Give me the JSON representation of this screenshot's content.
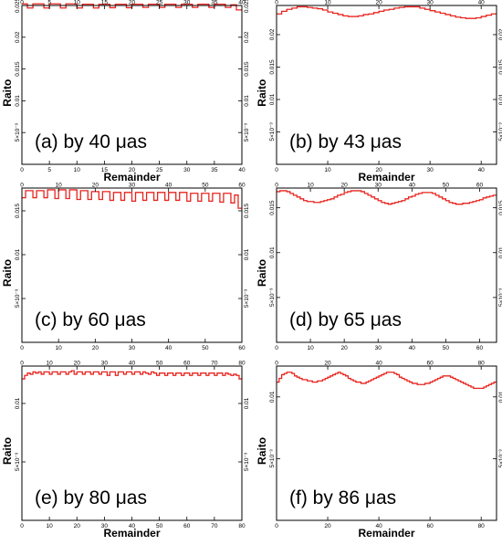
{
  "figure": {
    "background": "#ffffff",
    "series_color": "#e8241e"
  },
  "chart_data": [
    {
      "type": "line",
      "subtype": "step",
      "panel_label": "(a) by 40 μas",
      "xlabel": "Remainder",
      "ylabel": "Raito",
      "xlim": [
        0,
        40
      ],
      "ylim": [
        0,
        0.025
      ],
      "x_ticks": [
        0,
        5,
        10,
        15,
        20,
        25,
        30,
        35,
        40
      ],
      "x_ticklabels": [
        "0",
        "5",
        "10",
        "15",
        "20",
        "25",
        "30",
        "35",
        "40"
      ],
      "y_ticks": [
        0.005,
        0.01,
        0.015,
        0.02,
        0.025
      ],
      "y_ticklabels": [
        "5×10⁻³",
        "0.01",
        "0.015",
        "0.02",
        "0.025"
      ],
      "grid": false,
      "series": [
        {
          "values": [
            0.02525,
            0.0246,
            0.02525,
            0.02525,
            0.0246,
            0.02525,
            0.02525,
            0.0246,
            0.02525,
            0.02525,
            0.0246,
            0.0252,
            0.0252,
            0.0246,
            0.0252,
            0.0252,
            0.02465,
            0.0252,
            0.0252,
            0.02465,
            0.0252,
            0.0252,
            0.0247,
            0.0252,
            0.0252,
            0.0247,
            0.0252,
            0.0252,
            0.0247,
            0.0252,
            0.0252,
            0.0247,
            0.0252,
            0.0252,
            0.0247,
            0.0252,
            0.0252,
            0.0247,
            0.0251,
            0.0243
          ]
        }
      ]
    },
    {
      "type": "line",
      "subtype": "step",
      "panel_label": "(b) by 43 μas",
      "xlabel": "Remainder",
      "ylabel": "Raito",
      "xlim": [
        0,
        43
      ],
      "ylim": [
        0,
        0.0245
      ],
      "x_ticks": [
        0,
        10,
        20,
        30,
        40
      ],
      "x_ticklabels": [
        "0",
        "10",
        "20",
        "30",
        "40"
      ],
      "y_ticks": [
        0.005,
        0.01,
        0.015,
        0.02
      ],
      "y_ticklabels": [
        "5×10⁻³",
        "0.01",
        "0.015",
        "0.02"
      ],
      "grid": false,
      "series": [
        {
          "values": [
            0.0232,
            0.0236,
            0.0239,
            0.0241,
            0.0243,
            0.0243,
            0.0242,
            0.0241,
            0.024,
            0.0238,
            0.0235,
            0.0233,
            0.0231,
            0.0229,
            0.0228,
            0.0228,
            0.0229,
            0.0231,
            0.0232,
            0.0234,
            0.0236,
            0.0238,
            0.0239,
            0.0241,
            0.0242,
            0.0243,
            0.0243,
            0.0243,
            0.0241,
            0.0239,
            0.0237,
            0.0235,
            0.0233,
            0.0231,
            0.0229,
            0.0227,
            0.0226,
            0.0225,
            0.0225,
            0.0226,
            0.0228,
            0.023,
            0.0232
          ]
        }
      ]
    },
    {
      "type": "line",
      "subtype": "step",
      "panel_label": "(c) by 60 μas",
      "xlabel": "",
      "ylabel": "Raito",
      "xlim": [
        0,
        60
      ],
      "ylim": [
        0,
        0.0176
      ],
      "x_ticks": [
        0,
        10,
        20,
        30,
        40,
        50,
        60
      ],
      "x_ticklabels": [
        "0",
        "10",
        "20",
        "30",
        "40",
        "50",
        "60"
      ],
      "y_ticks": [
        0.005,
        0.01,
        0.015
      ],
      "y_ticklabels": [
        "5×10⁻³",
        "0.01",
        "0.015"
      ],
      "grid": false,
      "series": [
        {
          "values": [
            0.0165,
            0.0173,
            0.0173,
            0.0165,
            0.0173,
            0.0173,
            0.0165,
            0.0174,
            0.0174,
            0.0164,
            0.0174,
            0.0174,
            0.0164,
            0.0174,
            0.0174,
            0.0163,
            0.0173,
            0.0173,
            0.0163,
            0.0172,
            0.0172,
            0.0163,
            0.0172,
            0.0172,
            0.0162,
            0.0171,
            0.0171,
            0.0162,
            0.0171,
            0.0171,
            0.0161,
            0.0171,
            0.0171,
            0.0162,
            0.0171,
            0.0171,
            0.0162,
            0.0171,
            0.0171,
            0.0162,
            0.0171,
            0.0171,
            0.0162,
            0.0171,
            0.0171,
            0.0161,
            0.017,
            0.017,
            0.0161,
            0.017,
            0.017,
            0.0161,
            0.017,
            0.017,
            0.016,
            0.017,
            0.017,
            0.0159,
            0.0168,
            0.0153
          ]
        }
      ]
    },
    {
      "type": "line",
      "subtype": "step",
      "panel_label": "(d) by 65 μas",
      "xlabel": "",
      "ylabel": "Raito",
      "xlim": [
        0,
        65
      ],
      "ylim": [
        0,
        0.0172
      ],
      "x_ticks": [
        0,
        10,
        20,
        30,
        40,
        50,
        60
      ],
      "x_ticklabels": [
        "0",
        "10",
        "20",
        "30",
        "40",
        "50",
        "60"
      ],
      "y_ticks": [
        0.005,
        0.01,
        0.015
      ],
      "y_ticklabels": [
        "5×10⁻³",
        "0.01",
        "0.015"
      ],
      "grid": false,
      "series": [
        {
          "values": [
            0.0168,
            0.0169,
            0.0169,
            0.0168,
            0.0166,
            0.0164,
            0.0162,
            0.016,
            0.0158,
            0.0157,
            0.0157,
            0.0156,
            0.0156,
            0.0157,
            0.0158,
            0.0159,
            0.016,
            0.0162,
            0.0164,
            0.0165,
            0.0167,
            0.0168,
            0.0169,
            0.0169,
            0.0169,
            0.0168,
            0.0166,
            0.0164,
            0.0162,
            0.016,
            0.0158,
            0.0156,
            0.0155,
            0.0154,
            0.0155,
            0.0156,
            0.0157,
            0.0158,
            0.016,
            0.0162,
            0.0163,
            0.0165,
            0.0166,
            0.0167,
            0.0167,
            0.0167,
            0.0166,
            0.0164,
            0.0162,
            0.016,
            0.0158,
            0.0156,
            0.0155,
            0.0154,
            0.0154,
            0.0155,
            0.0155,
            0.0156,
            0.0157,
            0.0158,
            0.0159,
            0.0161,
            0.0162,
            0.0163,
            0.0164
          ]
        }
      ]
    },
    {
      "type": "line",
      "subtype": "step",
      "panel_label": "(e) by 80 μas",
      "xlabel": "Remainder",
      "ylabel": "Raito",
      "xlim": [
        0,
        80
      ],
      "ylim": [
        0,
        0.0132
      ],
      "x_ticks": [
        0,
        10,
        20,
        30,
        40,
        50,
        60,
        70,
        80
      ],
      "x_ticklabels": [
        "0",
        "10",
        "20",
        "30",
        "40",
        "50",
        "60",
        "70",
        "80"
      ],
      "y_ticks": [
        0.005,
        0.01
      ],
      "y_ticklabels": [
        "5×10⁻³",
        "0.01"
      ],
      "grid": false,
      "series": [
        {
          "values": [
            0.0121,
            0.0124,
            0.0126,
            0.0125,
            0.0127,
            0.0126,
            0.0127,
            0.0125,
            0.0127,
            0.0127,
            0.0125,
            0.0127,
            0.0127,
            0.0125,
            0.0127,
            0.0127,
            0.0125,
            0.0127,
            0.0128,
            0.0125,
            0.0127,
            0.0127,
            0.0125,
            0.0127,
            0.0127,
            0.0125,
            0.0127,
            0.0127,
            0.0125,
            0.0127,
            0.0127,
            0.0124,
            0.0127,
            0.0127,
            0.0124,
            0.0127,
            0.0127,
            0.0125,
            0.0127,
            0.0127,
            0.0125,
            0.0127,
            0.0127,
            0.0125,
            0.0127,
            0.0126,
            0.0125,
            0.0127,
            0.0126,
            0.0124,
            0.0126,
            0.0126,
            0.0124,
            0.0126,
            0.0126,
            0.0124,
            0.0126,
            0.0126,
            0.0124,
            0.0126,
            0.0126,
            0.0124,
            0.0126,
            0.0126,
            0.0124,
            0.0126,
            0.0126,
            0.0124,
            0.0126,
            0.0126,
            0.0124,
            0.0126,
            0.0126,
            0.0124,
            0.0126,
            0.0125,
            0.0124,
            0.0125,
            0.0124,
            0.0121
          ]
        }
      ]
    },
    {
      "type": "line",
      "subtype": "step",
      "panel_label": "(f) by 86 μas",
      "xlabel": "Remainder",
      "ylabel": "Raito",
      "xlim": [
        0,
        86
      ],
      "ylim": [
        0,
        0.0125
      ],
      "x_ticks": [
        0,
        20,
        40,
        60,
        80
      ],
      "x_ticklabels": [
        "0",
        "20",
        "40",
        "60",
        "80"
      ],
      "y_ticks": [
        0.005,
        0.01
      ],
      "y_ticklabels": [
        "5×10⁻³",
        "0.01"
      ],
      "grid": false,
      "series": [
        {
          "values": [
            0.0112,
            0.0115,
            0.0118,
            0.0119,
            0.012,
            0.012,
            0.0119,
            0.0117,
            0.0116,
            0.0115,
            0.0114,
            0.0114,
            0.0113,
            0.0113,
            0.0112,
            0.0112,
            0.0113,
            0.0113,
            0.0114,
            0.0115,
            0.0116,
            0.0117,
            0.0118,
            0.0119,
            0.012,
            0.0119,
            0.0118,
            0.0117,
            0.0115,
            0.0114,
            0.0113,
            0.0112,
            0.0112,
            0.0111,
            0.0111,
            0.0112,
            0.0113,
            0.0114,
            0.0115,
            0.0116,
            0.0117,
            0.0118,
            0.0119,
            0.012,
            0.012,
            0.012,
            0.0119,
            0.0118,
            0.0116,
            0.0115,
            0.0114,
            0.0113,
            0.0112,
            0.0111,
            0.0111,
            0.011,
            0.011,
            0.011,
            0.0111,
            0.0111,
            0.0112,
            0.0113,
            0.0114,
            0.0115,
            0.0116,
            0.0117,
            0.0117,
            0.0117,
            0.0116,
            0.0115,
            0.0114,
            0.0113,
            0.0112,
            0.0111,
            0.011,
            0.0109,
            0.0108,
            0.0107,
            0.0107,
            0.0107,
            0.0107,
            0.0108,
            0.0109,
            0.011,
            0.0111,
            0.0112
          ]
        }
      ]
    }
  ]
}
